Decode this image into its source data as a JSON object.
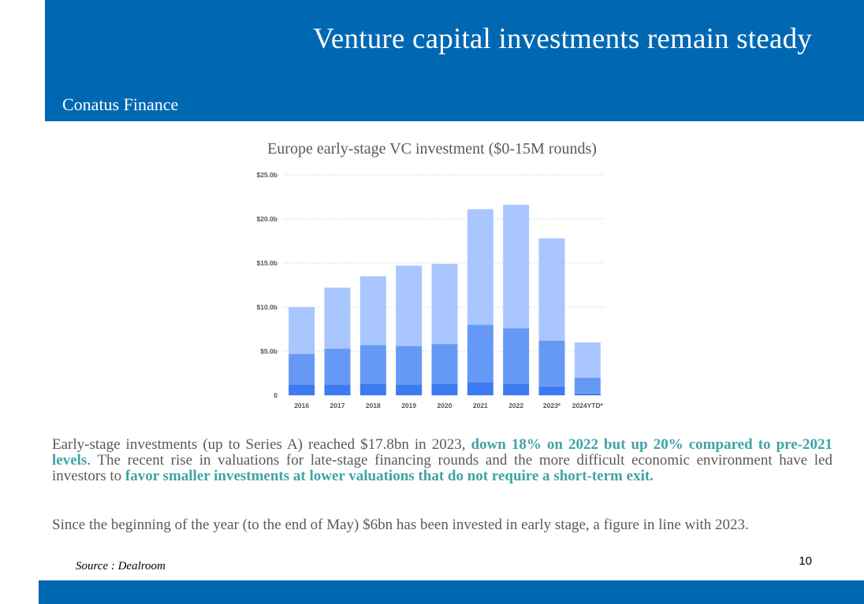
{
  "header": {
    "title": "Venture capital investments remain steady",
    "company": "Conatus Finance"
  },
  "chart_title": "Europe early-stage VC investment ($0-15M rounds)",
  "chart_data": {
    "type": "bar",
    "stacked": true,
    "title": "Europe early-stage VC investment ($0-15M rounds)",
    "categories": [
      "2016",
      "2017",
      "2018",
      "2019",
      "2020",
      "2021",
      "2022",
      "2023*",
      "2024YTD*"
    ],
    "series": [
      {
        "color": "#3d7bf0",
        "values": [
          1.2,
          1.2,
          1.3,
          1.2,
          1.3,
          1.5,
          1.3,
          1.0,
          0.2
        ]
      },
      {
        "color": "#6699f5",
        "values": [
          3.5,
          4.1,
          4.4,
          4.4,
          4.5,
          6.5,
          6.3,
          5.2,
          1.8
        ]
      },
      {
        "color": "#a9c6ff",
        "values": [
          5.3,
          6.9,
          7.8,
          9.1,
          9.1,
          13.1,
          14.0,
          11.6,
          4.0
        ]
      }
    ],
    "y_ticks": [
      {
        "value": 0,
        "label": "0"
      },
      {
        "value": 5,
        "label": "$5.0b"
      },
      {
        "value": 10,
        "label": "$10.0b"
      },
      {
        "value": 15,
        "label": "$15.0b"
      },
      {
        "value": 20,
        "label": "$20.0b"
      },
      {
        "value": 25,
        "label": "$25.0b"
      }
    ],
    "ylim": [
      0,
      25
    ],
    "grid": true
  },
  "body": {
    "p1": {
      "part1": "Early-stage investments (up to Series A) reached $17.8bn in 2023, ",
      "highlight1": "down 18% on 2022 but up 20% compared to pre-2021 levels",
      "part2": ". The recent rise in valuations for late-stage financing rounds and the more difficult economic environment have led investors to ",
      "highlight2": "favor smaller investments at lower valuations that do not require a short-term exit."
    },
    "p2": "Since the beginning of the year (to the end of May) $6bn has been invested in early stage, a figure in line with 2023."
  },
  "source": "Source : Dealroom",
  "page_number": "10",
  "colors": {
    "brand_blue": "#0068b3",
    "highlight_teal": "#3fa4a6",
    "body_text_gray": "#595959"
  }
}
